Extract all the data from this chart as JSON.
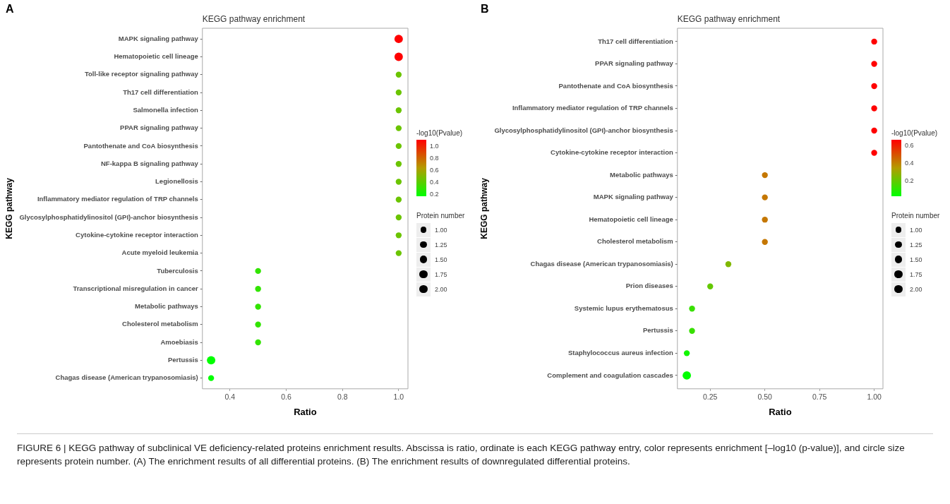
{
  "chart_data": [
    {
      "type": "bubble",
      "orientation": "horizontal",
      "title": "KEGG pathway enrichment",
      "xlabel": "Ratio",
      "ylabel": "KEGG pathway",
      "clabel": "-log10(Pvalue)",
      "legend_title": "Protein number",
      "categories": [
        "MAPK signaling pathway",
        "Hematopoietic cell lineage",
        "Toll-like receptor signaling pathway",
        "Th17 cell differentiation",
        "Salmonella infection",
        "PPAR signaling pathway",
        "Pantothenate and CoA biosynthesis",
        "NF-kappa B signaling pathway",
        "Legionellosis",
        "Inflammatory mediator regulation of TRP channels",
        "Glycosylphosphatidylinositol (GPI)-anchor biosynthesis",
        "Cytokine-cytokine receptor interaction",
        "Acute myeloid leukemia",
        "Tuberculosis",
        "Transcriptional misregulation in cancer",
        "Metabolic pathways",
        "Cholesterol metabolism",
        "Amoebiasis",
        "Pertussis",
        "Chagas disease (American trypanosomiasis)"
      ],
      "values": [
        1.0,
        1.0,
        1.0,
        1.0,
        1.0,
        1.0,
        1.0,
        1.0,
        1.0,
        1.0,
        1.0,
        1.0,
        1.0,
        0.5,
        0.5,
        0.5,
        0.5,
        0.5,
        0.333,
        0.333
      ],
      "sizes": [
        2,
        2,
        1,
        1,
        1,
        1,
        1,
        1,
        1,
        1,
        1,
        1,
        1,
        1,
        1,
        1,
        1,
        1,
        2,
        1
      ],
      "cvalues": [
        1.11,
        1.11,
        0.45,
        0.45,
        0.45,
        0.45,
        0.45,
        0.45,
        0.45,
        0.45,
        0.45,
        0.45,
        0.45,
        0.3,
        0.3,
        0.3,
        0.3,
        0.3,
        0.17,
        0.17
      ],
      "size_legend": [
        {
          "value": 1,
          "label": "1.00"
        },
        {
          "value": 1.25,
          "label": "1.25"
        },
        {
          "value": 1.5,
          "label": "1.50"
        },
        {
          "value": 1.75,
          "label": "1.75"
        },
        {
          "value": 2,
          "label": "2.00"
        }
      ],
      "clim": [
        0.17,
        1.11
      ],
      "cticks": [
        {
          "value": 0.2,
          "label": "0.2"
        },
        {
          "value": 0.4,
          "label": "0.4"
        },
        {
          "value": 0.6,
          "label": "0.6"
        },
        {
          "value": 0.8,
          "label": "0.8"
        },
        {
          "value": 1.0,
          "label": "1.0"
        }
      ],
      "xlim": [
        0.302,
        1.033
      ],
      "xticks": [
        {
          "value": 0.4,
          "label": "0.4"
        },
        {
          "value": 0.6,
          "label": "0.6"
        },
        {
          "value": 0.8,
          "label": "0.8"
        },
        {
          "value": 1.0,
          "label": "1.0"
        }
      ],
      "grid": false,
      "annotations": [
        "A"
      ]
    },
    {
      "type": "bubble",
      "orientation": "horizontal",
      "title": "KEGG pathway enrichment",
      "xlabel": "Ratio",
      "ylabel": "KEGG pathway",
      "clabel": "-log10(Pvalue)",
      "legend_title": "Protein number",
      "categories": [
        "Th17 cell differentiation",
        "PPAR signaling pathway",
        "Pantothenate and CoA biosynthesis",
        "Inflammatory mediator regulation of TRP channels",
        "Glycosylphosphatidylinositol (GPI)-anchor biosynthesis",
        "Cytokine-cytokine receptor interaction",
        "Metabolic pathways",
        "MAPK signaling pathway",
        "Hematopoietic cell lineage",
        "Cholesterol metabolism",
        "Chagas disease (American trypanosomiasis)",
        "Prion diseases",
        "Systemic lupus erythematosus",
        "Pertussis",
        "Staphylococcus aureus infection",
        "Complement and coagulation cascades"
      ],
      "values": [
        1.0,
        1.0,
        1.0,
        1.0,
        1.0,
        1.0,
        0.5,
        0.5,
        0.5,
        0.5,
        0.333,
        0.25,
        0.167,
        0.167,
        0.143,
        0.143
      ],
      "sizes": [
        1,
        1,
        1,
        1,
        1,
        1,
        1,
        1,
        1,
        1,
        1,
        1,
        1,
        1,
        1,
        2
      ],
      "cvalues": [
        0.665,
        0.665,
        0.665,
        0.665,
        0.665,
        0.665,
        0.42,
        0.42,
        0.42,
        0.42,
        0.25,
        0.2,
        0.12,
        0.12,
        0.05,
        0.02
      ],
      "size_legend": [
        {
          "value": 1,
          "label": "1.00"
        },
        {
          "value": 1.25,
          "label": "1.25"
        },
        {
          "value": 1.5,
          "label": "1.50"
        },
        {
          "value": 1.75,
          "label": "1.75"
        },
        {
          "value": 2,
          "label": "2.00"
        }
      ],
      "clim": [
        0.02,
        0.665
      ],
      "cticks": [
        0.2,
        0.4,
        0.6
      ],
      "xlim": [
        0.1,
        1.04
      ],
      "xticks": [
        {
          "value": 0.25,
          "label": "0.25"
        },
        {
          "value": 0.5,
          "label": "0.50"
        },
        {
          "value": 0.75,
          "label": "0.75"
        },
        {
          "value": 1.0,
          "label": "1.00"
        }
      ],
      "grid": false,
      "annotations": [
        "B",
        "FIGURE 6 | KEGG pathway of subclinical VE deficiency-related proteins enrichment results. Abscissa is ratio, ordinate is each KEGG pathway entry, color represents enrichment [–log10 (p-value)], and circle size represents protein number. (A) The enrichment results of all differential proteins. (B) The enrichment results of downregulated differential proteins."
      ]
    }
  ]
}
